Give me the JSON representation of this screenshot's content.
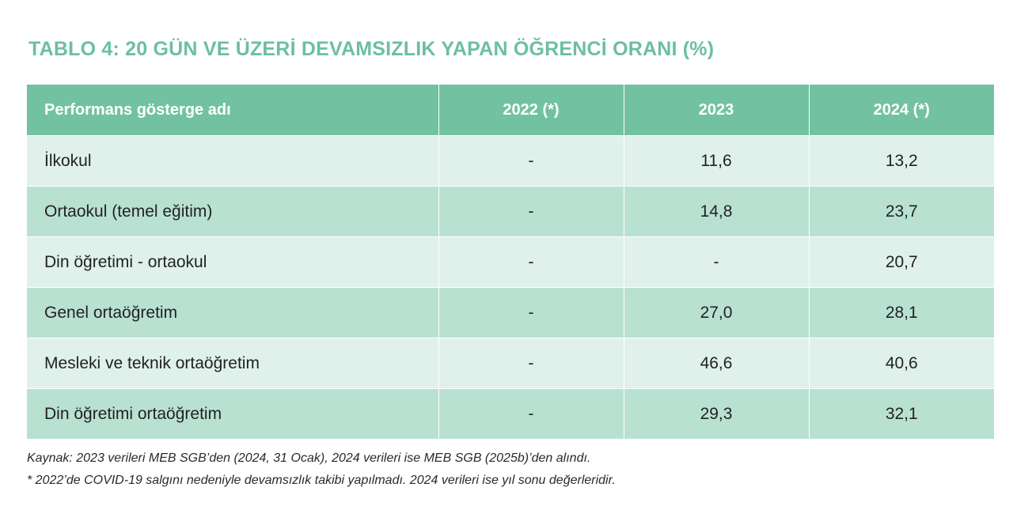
{
  "title": "TABLO 4: 20 GÜN VE ÜZERİ DEVAMSIZLIK YAPAN ÖĞRENCİ ORANI (%)",
  "colors": {
    "title": "#6cbf9f",
    "header_bg": "#72c2a2",
    "row_light": "#dff1ea",
    "row_dark": "#b9e1d2"
  },
  "table": {
    "headers": [
      "Performans gösterge adı",
      "2022 (*)",
      "2023",
      "2024 (*)"
    ],
    "rows": [
      [
        "İlkokul",
        "-",
        "11,6",
        "13,2"
      ],
      [
        "Ortaokul (temel eğitim)",
        "-",
        "14,8",
        "23,7"
      ],
      [
        "Din öğretimi - ortaokul",
        "-",
        "-",
        "20,7"
      ],
      [
        "Genel ortaöğretim",
        "-",
        "27,0",
        "28,1"
      ],
      [
        "Mesleki ve teknik ortaöğretim",
        "-",
        "46,6",
        "40,6"
      ],
      [
        "Din öğretimi  ortaöğretim",
        "-",
        "29,3",
        "32,1"
      ]
    ]
  },
  "notes": {
    "source": "Kaynak: 2023 verileri MEB SGB’den (2024, 31 Ocak), 2024 verileri ise MEB SGB (2025b)’den alındı.",
    "footnote": "* 2022’de COVID-19 salgını nedeniyle devamsızlık takibi yapılmadı. 2024 verileri ise yıl sonu değerleridir."
  }
}
